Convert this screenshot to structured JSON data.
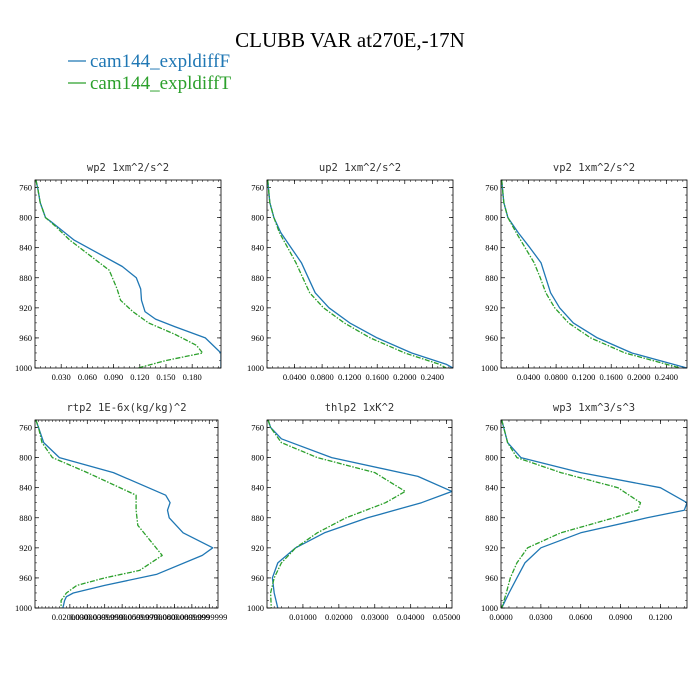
{
  "title": "CLUBB VAR at270E,-17N",
  "legend": [
    {
      "label": "cam144_expldiffF",
      "color": "#1f77b4",
      "dash": "solid"
    },
    {
      "label": "cam144_expldiffT",
      "color": "#2ca02c",
      "dash": "dashdot"
    }
  ],
  "chart_data": [
    {
      "type": "line",
      "title": "wp2  1xm^2/s^2",
      "xlim": [
        0,
        0.213
      ],
      "ylim": [
        1000,
        750
      ],
      "xticks": [
        0.03,
        0.06,
        0.09,
        0.12,
        0.15,
        0.18
      ],
      "xtick_labels": [
        "0.030",
        "0.060",
        "0.090",
        "0.120",
        "0.150",
        "0.180"
      ],
      "yticks": [
        760,
        800,
        840,
        880,
        920,
        960,
        1000
      ],
      "ytick_labels": [
        "760",
        "800",
        "840",
        "880",
        "920",
        "960",
        "1000"
      ],
      "series": [
        {
          "name": "cam144_expldiffF",
          "y": [
            750,
            760,
            780,
            800,
            805,
            830,
            865,
            880,
            895,
            910,
            925,
            935,
            945,
            960,
            980,
            1000
          ],
          "x": [
            0.001,
            0.003,
            0.006,
            0.012,
            0.018,
            0.045,
            0.1,
            0.116,
            0.121,
            0.122,
            0.126,
            0.138,
            0.16,
            0.195,
            0.213,
            0.213
          ]
        },
        {
          "name": "cam144_expldiffT",
          "y": [
            750,
            760,
            780,
            800,
            810,
            830,
            870,
            895,
            910,
            925,
            940,
            955,
            970,
            980,
            990,
            1000
          ],
          "x": [
            0.001,
            0.003,
            0.006,
            0.012,
            0.022,
            0.04,
            0.085,
            0.094,
            0.098,
            0.112,
            0.13,
            0.16,
            0.185,
            0.192,
            0.15,
            0.118
          ]
        }
      ]
    },
    {
      "type": "line",
      "title": "up2  1xm^2/s^2",
      "xlim": [
        0,
        0.27
      ],
      "ylim": [
        1000,
        750
      ],
      "xticks": [
        0.04,
        0.08,
        0.12,
        0.16,
        0.2,
        0.24
      ],
      "xtick_labels": [
        "0.0400",
        "0.0800",
        "0.1200",
        "0.1600",
        "0.2000",
        "0.2400"
      ],
      "yticks": [
        760,
        800,
        840,
        880,
        920,
        960,
        1000
      ],
      "ytick_labels": [
        "760",
        "800",
        "840",
        "880",
        "920",
        "960",
        "1000"
      ],
      "series": [
        {
          "name": "cam144_expldiffF",
          "y": [
            750,
            780,
            800,
            820,
            840,
            860,
            880,
            900,
            920,
            940,
            960,
            980,
            995,
            1000
          ],
          "x": [
            0.001,
            0.004,
            0.01,
            0.02,
            0.035,
            0.05,
            0.06,
            0.07,
            0.09,
            0.12,
            0.16,
            0.21,
            0.26,
            0.27
          ]
        },
        {
          "name": "cam144_expldiffT",
          "y": [
            750,
            780,
            800,
            820,
            840,
            860,
            880,
            900,
            920,
            940,
            960,
            980,
            995,
            1000
          ],
          "x": [
            0.001,
            0.004,
            0.01,
            0.018,
            0.03,
            0.042,
            0.052,
            0.062,
            0.082,
            0.112,
            0.15,
            0.2,
            0.25,
            0.26
          ]
        }
      ]
    },
    {
      "type": "line",
      "title": "vp2  1xm^2/s^2",
      "xlim": [
        0,
        0.27
      ],
      "ylim": [
        1000,
        750
      ],
      "xticks": [
        0.04,
        0.08,
        0.12,
        0.16,
        0.2,
        0.24
      ],
      "xtick_labels": [
        "0.0400",
        "0.0800",
        "0.1200",
        "0.1600",
        "0.2000",
        "0.2400"
      ],
      "yticks": [
        760,
        800,
        840,
        880,
        920,
        960,
        1000
      ],
      "ytick_labels": [
        "760",
        "800",
        "840",
        "880",
        "920",
        "960",
        "1000"
      ],
      "series": [
        {
          "name": "cam144_expldiffF",
          "y": [
            750,
            780,
            800,
            820,
            840,
            860,
            880,
            900,
            920,
            940,
            960,
            980,
            995,
            1000
          ],
          "x": [
            0.001,
            0.004,
            0.01,
            0.025,
            0.042,
            0.058,
            0.065,
            0.072,
            0.085,
            0.105,
            0.14,
            0.19,
            0.25,
            0.27
          ]
        },
        {
          "name": "cam144_expldiffT",
          "y": [
            750,
            780,
            800,
            820,
            840,
            860,
            880,
            900,
            920,
            940,
            960,
            980,
            995,
            1000
          ],
          "x": [
            0.001,
            0.004,
            0.01,
            0.022,
            0.035,
            0.048,
            0.057,
            0.065,
            0.078,
            0.098,
            0.13,
            0.18,
            0.24,
            0.26
          ]
        }
      ]
    },
    {
      "type": "line",
      "title": "rtp2  1E-6x(kg/kg)^2",
      "xlim": [
        0,
        0.000105
      ],
      "ylim": [
        1000,
        750
      ],
      "xticks": [
        2e-05,
        3e-05,
        4e-05,
        5e-05,
        6e-05,
        7e-05,
        8e-05,
        9e-05,
        0.0001
      ],
      "xtick_labels": [
        "0.0200000",
        "0.0300000",
        "0.0399999",
        "0.0500000",
        "0.0599999",
        "0.0700000",
        "0.0800000",
        "0.0899999",
        "0.0999999"
      ],
      "yticks": [
        760,
        800,
        840,
        880,
        920,
        960,
        1000
      ],
      "ytick_labels": [
        "760",
        "800",
        "840",
        "880",
        "920",
        "960",
        "1000"
      ],
      "series": [
        {
          "name": "cam144_expldiffF",
          "y": [
            750,
            760,
            780,
            800,
            820,
            850,
            860,
            870,
            880,
            900,
            920,
            930,
            955,
            970,
            980,
            985,
            990,
            1000
          ],
          "x": [
            5e-07,
            2e-06,
            5e-06,
            1.4e-05,
            4.5e-05,
            7.5e-05,
            7.75e-05,
            7.6e-05,
            7.7e-05,
            8.5e-05,
            0.000102,
            9.6e-05,
            7e-05,
            4e-05,
            2.2e-05,
            1.8e-05,
            1.7e-05,
            1.6e-05
          ]
        },
        {
          "name": "cam144_expldiffT",
          "y": [
            750,
            760,
            780,
            800,
            820,
            850,
            870,
            890,
            910,
            930,
            950,
            960,
            970,
            980,
            990,
            1000
          ],
          "x": [
            5e-07,
            2e-06,
            4e-06,
            1e-05,
            3e-05,
            5.8e-05,
            5.8e-05,
            5.9e-05,
            6.6e-05,
            7.3e-05,
            6e-05,
            4e-05,
            2.4e-05,
            1.8e-05,
            1.5e-05,
            1.5e-05
          ]
        }
      ]
    },
    {
      "type": "line",
      "title": "thlp2  1xK^2",
      "xlim": [
        0,
        0.0515
      ],
      "ylim": [
        1000,
        750
      ],
      "xticks": [
        0.01,
        0.02,
        0.03,
        0.04,
        0.05
      ],
      "xtick_labels": [
        "0.01000",
        "0.02000",
        "0.03000",
        "0.04000",
        "0.05000"
      ],
      "yticks": [
        760,
        800,
        840,
        880,
        920,
        960,
        1000
      ],
      "ytick_labels": [
        "760",
        "800",
        "840",
        "880",
        "920",
        "960",
        "1000"
      ],
      "series": [
        {
          "name": "cam144_expldiffF",
          "y": [
            750,
            760,
            775,
            800,
            825,
            845,
            860,
            880,
            900,
            920,
            940,
            960,
            980,
            1000
          ],
          "x": [
            0.0003,
            0.001,
            0.004,
            0.018,
            0.042,
            0.0515,
            0.043,
            0.028,
            0.016,
            0.008,
            0.003,
            0.0015,
            0.002,
            0.003
          ]
        },
        {
          "name": "cam144_expldiffT",
          "y": [
            750,
            760,
            780,
            800,
            820,
            845,
            860,
            880,
            900,
            920,
            940,
            960,
            980,
            1000
          ],
          "x": [
            0.0003,
            0.001,
            0.004,
            0.014,
            0.03,
            0.0385,
            0.033,
            0.022,
            0.014,
            0.008,
            0.004,
            0.002,
            0.001,
            0.0012
          ]
        }
      ]
    },
    {
      "type": "line",
      "title": "wp3  1xm^3/s^3",
      "xlim": [
        0,
        0.14
      ],
      "ylim": [
        1000,
        750
      ],
      "xticks": [
        0.0,
        0.03,
        0.06,
        0.09,
        0.12
      ],
      "xtick_labels": [
        "0.0000",
        "0.0300",
        "0.0600",
        "0.0900",
        "0.1200"
      ],
      "yticks": [
        760,
        800,
        840,
        880,
        920,
        960,
        1000
      ],
      "ytick_labels": [
        "760",
        "800",
        "840",
        "880",
        "920",
        "960",
        "1000"
      ],
      "series": [
        {
          "name": "cam144_expldiffF",
          "y": [
            750,
            760,
            780,
            800,
            820,
            840,
            860,
            870,
            880,
            900,
            920,
            940,
            960,
            980,
            1000
          ],
          "x": [
            0.0005,
            0.002,
            0.005,
            0.015,
            0.06,
            0.12,
            0.14,
            0.138,
            0.11,
            0.06,
            0.03,
            0.018,
            0.012,
            0.006,
            0.0005
          ]
        },
        {
          "name": "cam144_expldiffT",
          "y": [
            750,
            760,
            780,
            800,
            820,
            840,
            860,
            870,
            880,
            900,
            920,
            940,
            960,
            980,
            1000
          ],
          "x": [
            0.0005,
            0.002,
            0.005,
            0.012,
            0.045,
            0.088,
            0.105,
            0.103,
            0.085,
            0.045,
            0.02,
            0.012,
            0.007,
            0.004,
            0.0005
          ]
        }
      ]
    }
  ]
}
